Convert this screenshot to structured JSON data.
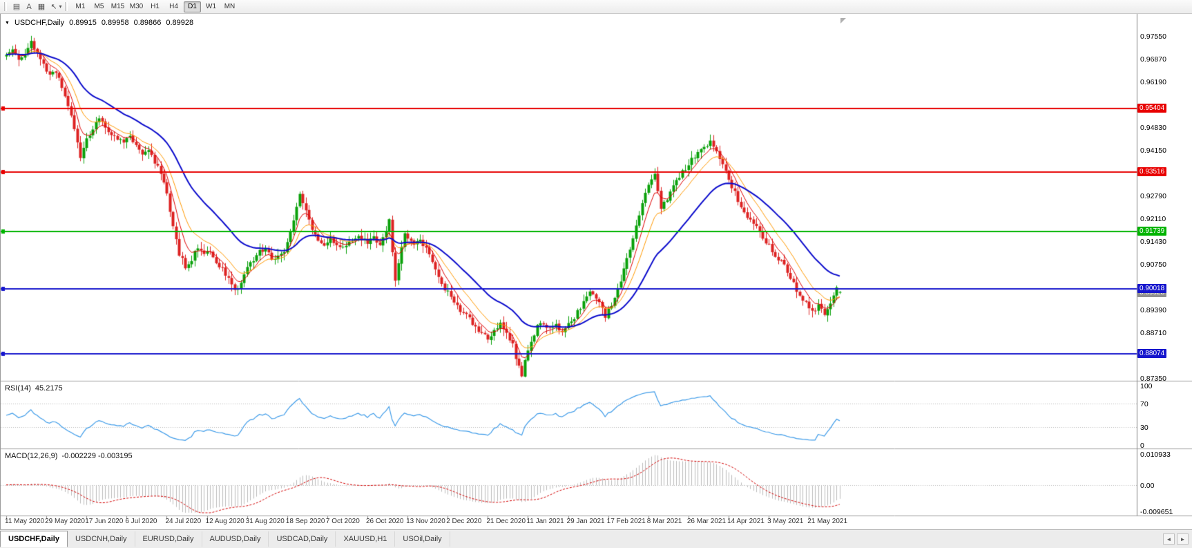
{
  "toolbar": {
    "icons": [
      {
        "name": "tile-windows-icon",
        "glyph": "▤"
      },
      {
        "name": "text-label-tool-icon",
        "glyph": "A"
      },
      {
        "name": "chart-objects-icon",
        "glyph": "▦"
      },
      {
        "name": "cursor-tool-icon",
        "glyph": "↖"
      },
      {
        "name": "chevron-down-icon",
        "glyph": "▾"
      }
    ],
    "timeframes": [
      "M1",
      "M5",
      "M15",
      "M30",
      "H1",
      "H4",
      "D1",
      "W1",
      "MN"
    ],
    "active_timeframe": "D1"
  },
  "chart_header": {
    "collapse_icon": "▼",
    "symbol_period": "USDCHF,Daily",
    "open": "0.89915",
    "high": "0.89958",
    "low": "0.89866",
    "close": "0.89928"
  },
  "price_axis": {
    "labels": [
      "0.97550",
      "0.96870",
      "0.96190",
      "0.94830",
      "0.94150",
      "0.92790",
      "0.92110",
      "0.91430",
      "0.90750",
      "0.89390",
      "0.88710",
      "0.87350"
    ],
    "tags": [
      {
        "price": "0.95404",
        "color": "#e80000",
        "text_color": "#ffffff",
        "name": "resistance-line-tag-0-95404"
      },
      {
        "price": "0.93516",
        "color": "#e80000",
        "text_color": "#ffffff",
        "name": "resistance-line-tag-0-93516"
      },
      {
        "price": "0.91739",
        "color": "#00b400",
        "text_color": "#ffffff",
        "name": "support-line-tag-0-91739"
      },
      {
        "price": "0.90018",
        "color": "#1515cd",
        "text_color": "#ffffff",
        "name": "level-line-tag-0-90018"
      },
      {
        "price": "0.88074",
        "color": "#1515cd",
        "text_color": "#ffffff",
        "name": "level-line-tag-0-88074"
      }
    ],
    "current_price_tag": {
      "price": "0.89928",
      "color": "#8f8f8f",
      "text_color": "#ffffff"
    }
  },
  "chart_data": {
    "type": "candlestick",
    "symbol": "USDCHF",
    "timeframe": "Daily",
    "bar_count": 271,
    "bars_per_label": 13,
    "price_range": {
      "max": 0.9815,
      "min": 0.8734
    },
    "current_bar": {
      "open": 0.89915,
      "high": 0.89958,
      "low": 0.89866,
      "close": 0.89928
    },
    "horizontal_lines": [
      {
        "price": 0.95404,
        "color": "#e80000"
      },
      {
        "price": 0.93516,
        "color": "#e80000"
      },
      {
        "price": 0.91739,
        "color": "#00b400"
      },
      {
        "price": 0.90018,
        "color": "#1515cd"
      },
      {
        "price": 0.88074,
        "color": "#1515cd"
      }
    ],
    "moving_averages": [
      {
        "period": 6,
        "color": "#e00000",
        "width": 1
      },
      {
        "period": 12,
        "color": "#ff9900",
        "width": 1
      },
      {
        "period": 30,
        "color": "#0a0acc",
        "width": 2
      }
    ],
    "price_path_anchors": [
      [
        0,
        0.97
      ],
      [
        2,
        0.9722
      ],
      [
        4,
        0.9688
      ],
      [
        6,
        0.9703
      ],
      [
        8,
        0.9738
      ],
      [
        10,
        0.9702
      ],
      [
        12,
        0.9672
      ],
      [
        14,
        0.964
      ],
      [
        16,
        0.9652
      ],
      [
        18,
        0.96
      ],
      [
        20,
        0.9548
      ],
      [
        22,
        0.9478
      ],
      [
        24,
        0.9398
      ],
      [
        26,
        0.9448
      ],
      [
        28,
        0.9482
      ],
      [
        30,
        0.9508
      ],
      [
        32,
        0.9488
      ],
      [
        34,
        0.9462
      ],
      [
        36,
        0.945
      ],
      [
        38,
        0.9442
      ],
      [
        40,
        0.9458
      ],
      [
        42,
        0.9428
      ],
      [
        44,
        0.9404
      ],
      [
        46,
        0.9412
      ],
      [
        48,
        0.9378
      ],
      [
        50,
        0.9352
      ],
      [
        52,
        0.9288
      ],
      [
        54,
        0.9188
      ],
      [
        56,
        0.9108
      ],
      [
        58,
        0.9068
      ],
      [
        60,
        0.9092
      ],
      [
        62,
        0.9128
      ],
      [
        64,
        0.9105
      ],
      [
        66,
        0.9115
      ],
      [
        68,
        0.9078
      ],
      [
        70,
        0.9058
      ],
      [
        72,
        0.9038
      ],
      [
        74,
        0.8992
      ],
      [
        76,
        0.9022
      ],
      [
        78,
        0.9072
      ],
      [
        80,
        0.9088
      ],
      [
        82,
        0.9112
      ],
      [
        84,
        0.9128
      ],
      [
        86,
        0.9092
      ],
      [
        88,
        0.9102
      ],
      [
        90,
        0.9118
      ],
      [
        92,
        0.9175
      ],
      [
        94,
        0.9252
      ],
      [
        95,
        0.9288
      ],
      [
        97,
        0.9238
      ],
      [
        99,
        0.9178
      ],
      [
        101,
        0.9142
      ],
      [
        103,
        0.9128
      ],
      [
        105,
        0.9152
      ],
      [
        107,
        0.9138
      ],
      [
        109,
        0.9122
      ],
      [
        111,
        0.9138
      ],
      [
        113,
        0.9158
      ],
      [
        115,
        0.9148
      ],
      [
        117,
        0.9142
      ],
      [
        119,
        0.9152
      ],
      [
        121,
        0.9138
      ],
      [
        123,
        0.9172
      ],
      [
        124,
        0.9212
      ],
      [
        125,
        0.9118
      ],
      [
        126,
        0.9032
      ],
      [
        128,
        0.9128
      ],
      [
        129,
        0.9162
      ],
      [
        130,
        0.9148
      ],
      [
        132,
        0.9132
      ],
      [
        134,
        0.9152
      ],
      [
        136,
        0.9118
      ],
      [
        138,
        0.9078
      ],
      [
        140,
        0.9032
      ],
      [
        142,
        0.8998
      ],
      [
        144,
        0.8982
      ],
      [
        146,
        0.8952
      ],
      [
        148,
        0.8928
      ],
      [
        150,
        0.8912
      ],
      [
        152,
        0.8888
      ],
      [
        154,
        0.8868
      ],
      [
        156,
        0.8852
      ],
      [
        158,
        0.8878
      ],
      [
        160,
        0.8898
      ],
      [
        162,
        0.8868
      ],
      [
        164,
        0.8832
      ],
      [
        166,
        0.8768
      ],
      [
        167,
        0.8742
      ],
      [
        168,
        0.8788
      ],
      [
        170,
        0.8848
      ],
      [
        172,
        0.8888
      ],
      [
        174,
        0.8902
      ],
      [
        176,
        0.8882
      ],
      [
        178,
        0.8892
      ],
      [
        180,
        0.8868
      ],
      [
        182,
        0.8898
      ],
      [
        184,
        0.8918
      ],
      [
        186,
        0.8948
      ],
      [
        188,
        0.8982
      ],
      [
        190,
        0.8992
      ],
      [
        192,
        0.8958
      ],
      [
        194,
        0.8922
      ],
      [
        196,
        0.8952
      ],
      [
        198,
        0.8998
      ],
      [
        200,
        0.9058
      ],
      [
        202,
        0.9118
      ],
      [
        204,
        0.9188
      ],
      [
        206,
        0.9258
      ],
      [
        208,
        0.9308
      ],
      [
        210,
        0.9352
      ],
      [
        211,
        0.9288
      ],
      [
        212,
        0.9248
      ],
      [
        214,
        0.9268
      ],
      [
        216,
        0.9308
      ],
      [
        218,
        0.9338
      ],
      [
        220,
        0.9362
      ],
      [
        222,
        0.9388
      ],
      [
        224,
        0.9408
      ],
      [
        226,
        0.9428
      ],
      [
        228,
        0.9442
      ],
      [
        230,
        0.9408
      ],
      [
        232,
        0.9368
      ],
      [
        234,
        0.9328
      ],
      [
        236,
        0.9288
      ],
      [
        238,
        0.9248
      ],
      [
        240,
        0.9218
      ],
      [
        242,
        0.9198
      ],
      [
        244,
        0.9168
      ],
      [
        246,
        0.9138
      ],
      [
        248,
        0.9118
      ],
      [
        250,
        0.9092
      ],
      [
        252,
        0.9068
      ],
      [
        254,
        0.9038
      ],
      [
        256,
        0.8998
      ],
      [
        258,
        0.8968
      ],
      [
        260,
        0.8948
      ],
      [
        262,
        0.8932
      ],
      [
        263,
        0.8952
      ],
      [
        264,
        0.8938
      ],
      [
        265,
        0.8925
      ],
      [
        266,
        0.8945
      ],
      [
        267,
        0.8965
      ],
      [
        268,
        0.8985
      ],
      [
        269,
        0.9002
      ],
      [
        270,
        0.89928
      ]
    ],
    "date_labels": [
      "11 May 2020",
      "29 May 2020",
      "17 Jun 2020",
      "6 Jul 2020",
      "24 Jul 2020",
      "12 Aug 2020",
      "31 Aug 2020",
      "18 Sep 2020",
      "7 Oct 2020",
      "26 Oct 2020",
      "13 Nov 2020",
      "2 Dec 2020",
      "21 Dec 2020",
      "11 Jan 2021",
      "29 Jan 2021",
      "17 Feb 2021",
      "8 Mar 2021",
      "26 Mar 2021",
      "14 Apr 2021",
      "3 May 2021",
      "21 May 2021"
    ]
  },
  "rsi": {
    "name": "RSI(14)",
    "value": "45.2175",
    "period": 14,
    "axis_labels": [
      "100",
      "70",
      "30",
      "0"
    ],
    "levels": [
      70,
      30
    ],
    "range": [
      0,
      100
    ],
    "line_color": "#3d9be9"
  },
  "macd": {
    "name": "MACD(12,26,9)",
    "values": "-0.002229 -0.003195",
    "fast": 12,
    "slow": 26,
    "signal": 9,
    "axis_labels": [
      "0.010933",
      "0.00",
      "-0.009651"
    ],
    "scale_max": 0.010933,
    "scale_min": -0.009651,
    "histogram_color": "#bcbcbc",
    "signal_color": "#d40000"
  },
  "tabs": [
    {
      "label": "USDCHF,Daily",
      "active": true
    },
    {
      "label": "USDCNH,Daily",
      "active": false
    },
    {
      "label": "EURUSD,Daily",
      "active": false
    },
    {
      "label": "AUDUSD,Daily",
      "active": false
    },
    {
      "label": "USDCAD,Daily",
      "active": false
    },
    {
      "label": "XAUUSD,H1",
      "active": false
    },
    {
      "label": "USOil,Daily",
      "active": false
    }
  ],
  "tab_scroll": {
    "left": "◄",
    "right": "►"
  },
  "colors": {
    "up": "#0aa10a",
    "down": "#dd2222",
    "background": "#ffffff",
    "divider": "#a0a0a0"
  }
}
